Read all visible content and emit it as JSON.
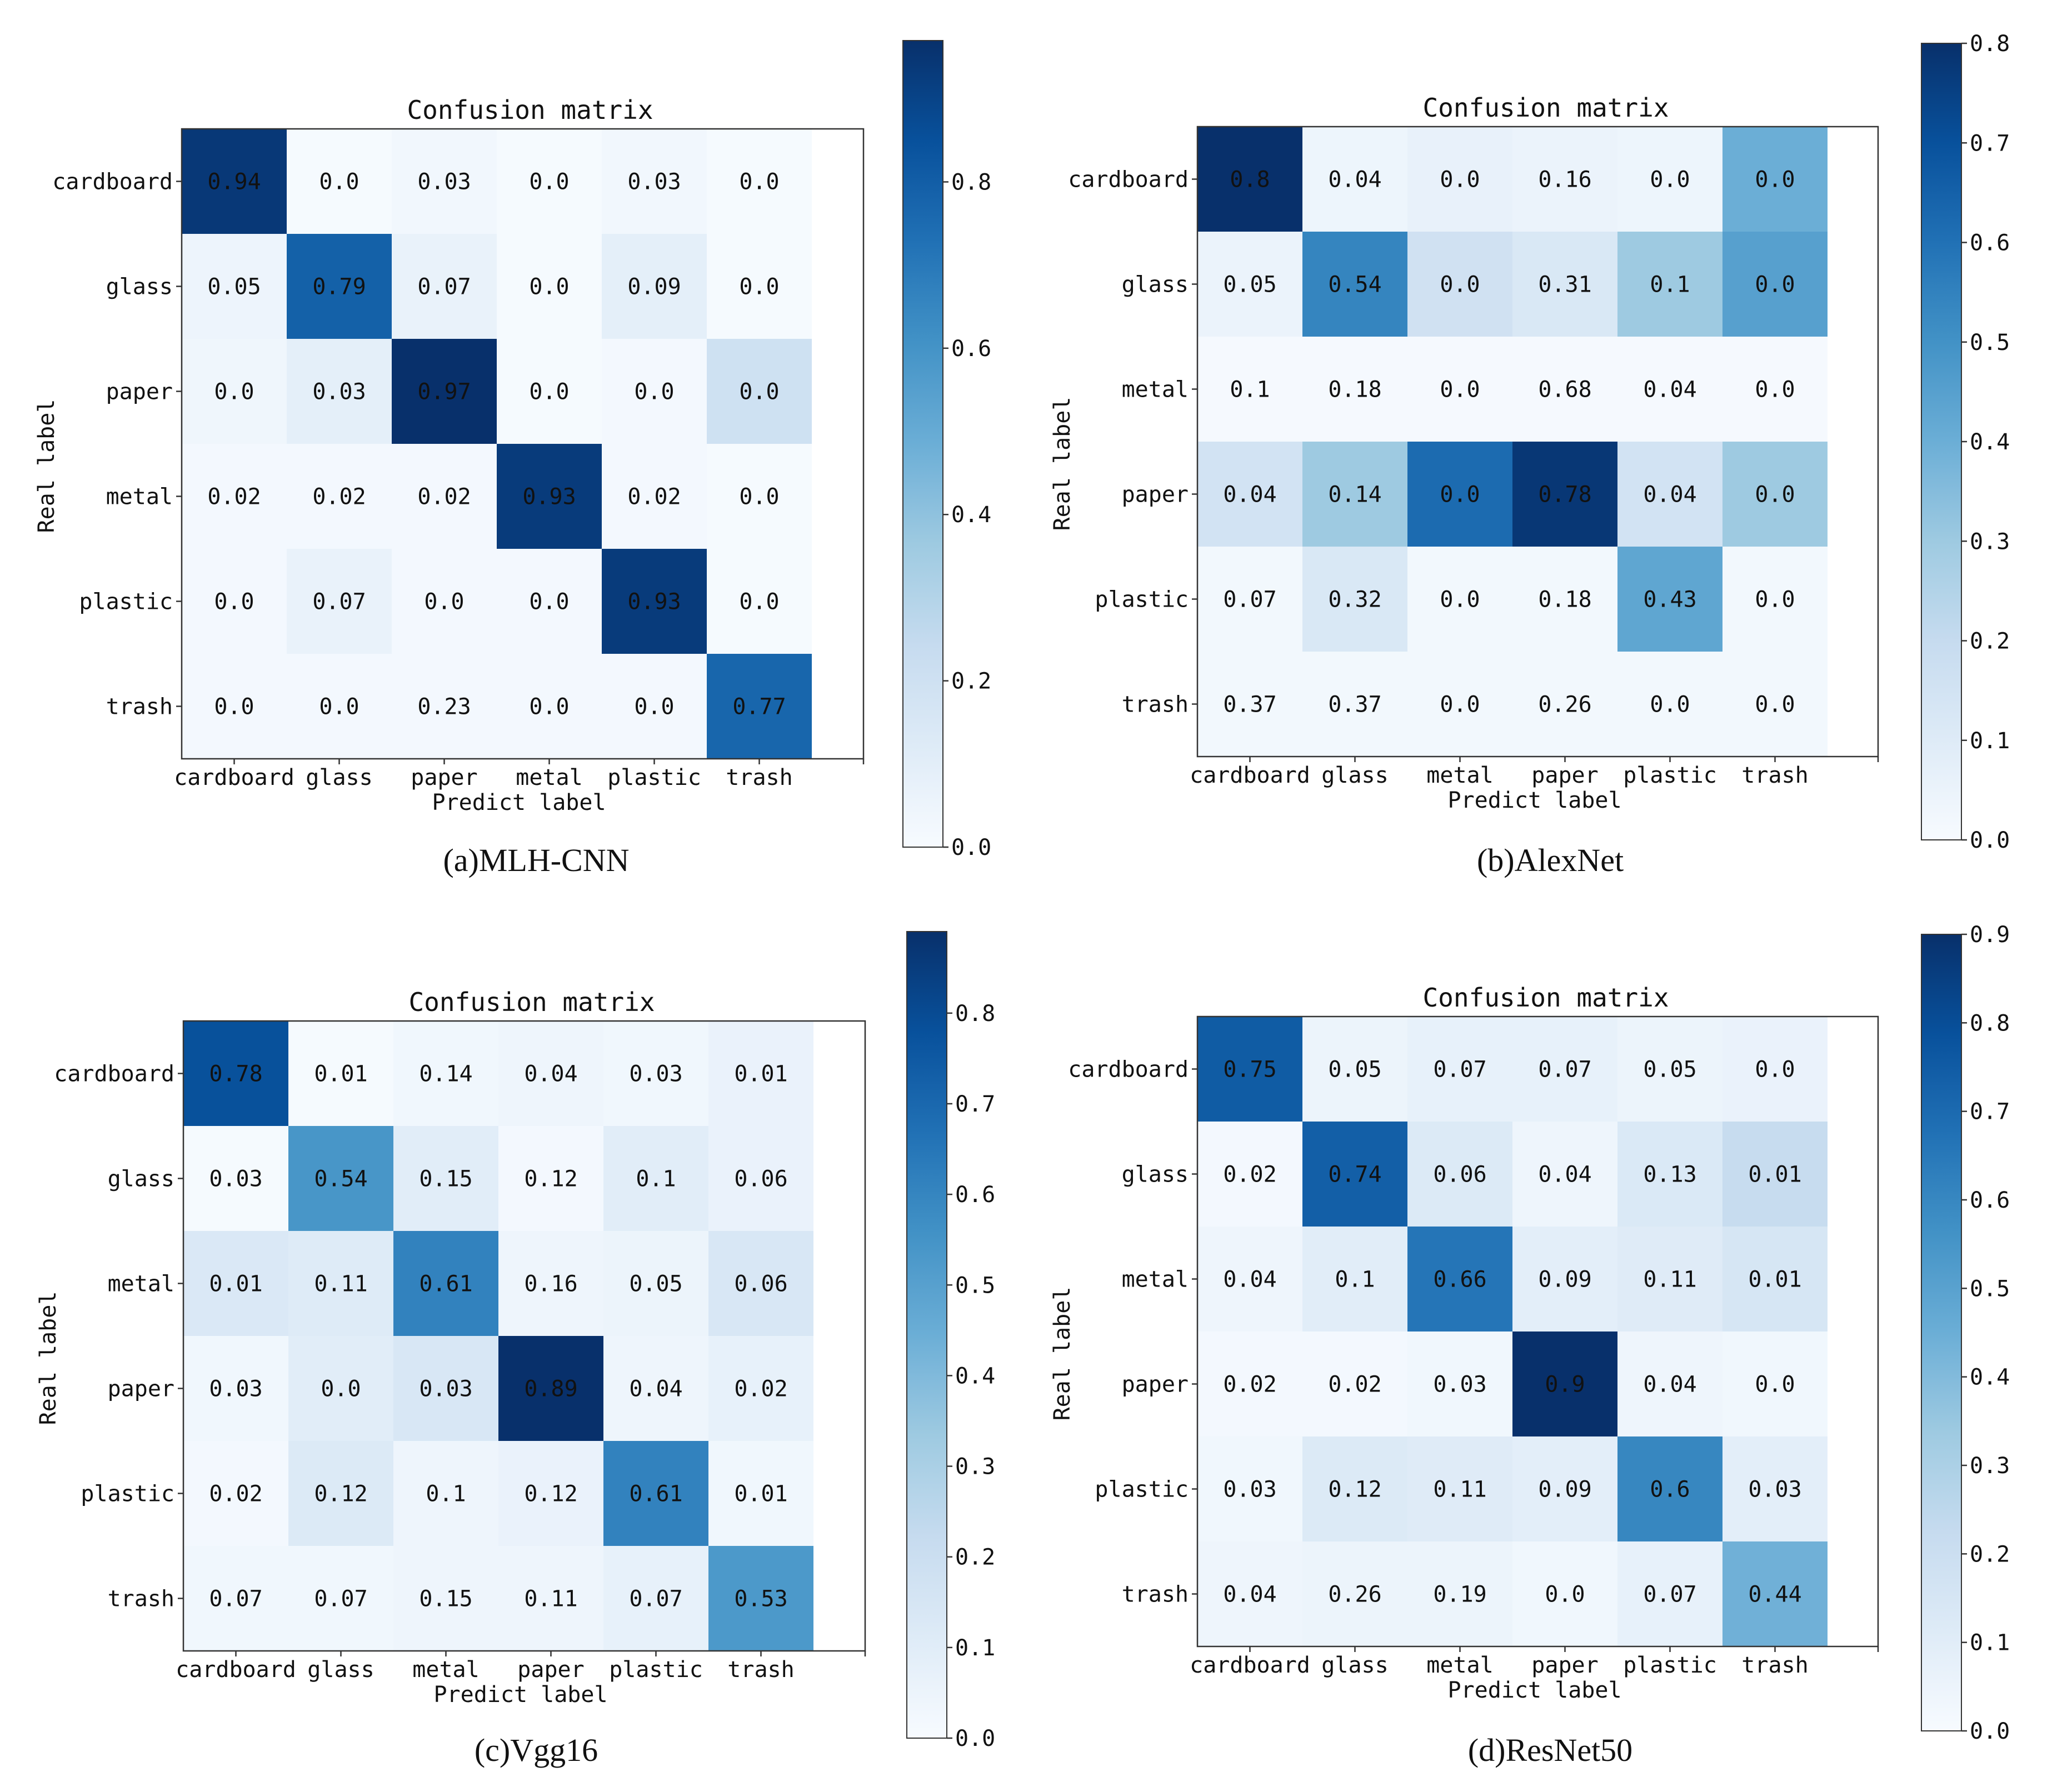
{
  "chart_data": [
    {
      "type": "heatmap",
      "title": "Confusion matrix",
      "caption": "(a)MLH-CNN",
      "xlabel": "Predict label",
      "ylabel": "Real label",
      "x_categories": [
        "cardboard",
        "glass",
        "paper",
        "metal",
        "plastic",
        "trash"
      ],
      "y_categories": [
        "cardboard",
        "glass",
        "paper",
        "metal",
        "plastic",
        "trash"
      ],
      "cells": [
        [
          "0.94",
          "0.0",
          "0.03",
          "0.0",
          "0.03",
          "0.0"
        ],
        [
          "0.05",
          "0.79",
          "0.07",
          "0.0",
          "0.09",
          "0.0"
        ],
        [
          "0.0",
          "0.03",
          "0.97",
          "0.0",
          "0.0",
          "0.0"
        ],
        [
          "0.02",
          "0.02",
          "0.02",
          "0.93",
          "0.02",
          "0.0"
        ],
        [
          "0.0",
          "0.07",
          "0.0",
          "0.0",
          "0.93",
          "0.0"
        ],
        [
          "0.0",
          "0.0",
          "0.23",
          "0.0",
          "0.0",
          "0.77"
        ]
      ],
      "shade": [
        [
          0.94,
          0.01,
          0.03,
          0.01,
          0.03,
          0.01
        ],
        [
          0.05,
          0.79,
          0.07,
          0.01,
          0.09,
          0.01
        ],
        [
          0.04,
          0.09,
          0.97,
          0.01,
          0.02,
          0.2
        ],
        [
          0.02,
          0.02,
          0.02,
          0.93,
          0.02,
          0.01
        ],
        [
          0.02,
          0.07,
          0.02,
          0.02,
          0.93,
          0.01
        ],
        [
          0.02,
          0.02,
          0.02,
          0.02,
          0.02,
          0.77
        ]
      ],
      "colorbar": {
        "min": 0.0,
        "max": 0.97,
        "ticks": [
          "0.0",
          "0.2",
          "0.4",
          "0.6",
          "0.8"
        ]
      }
    },
    {
      "type": "heatmap",
      "title": "Confusion matrix",
      "caption": "(b)AlexNet",
      "xlabel": "Predict label",
      "ylabel": "Real label",
      "x_categories": [
        "cardboard",
        "glass",
        "metal",
        "paper",
        "plastic",
        "trash"
      ],
      "y_categories": [
        "cardboard",
        "glass",
        "metal",
        "paper",
        "plastic",
        "trash"
      ],
      "cells": [
        [
          "0.8",
          "0.04",
          "0.0",
          "0.16",
          "0.0",
          "0.0"
        ],
        [
          "0.05",
          "0.54",
          "0.0",
          "0.31",
          "0.1",
          "0.0"
        ],
        [
          "0.1",
          "0.18",
          "0.0",
          "0.68",
          "0.04",
          "0.0"
        ],
        [
          "0.04",
          "0.14",
          "0.0",
          "0.78",
          "0.04",
          "0.0"
        ],
        [
          "0.07",
          "0.32",
          "0.0",
          "0.18",
          "0.43",
          "0.0"
        ],
        [
          "0.37",
          "0.37",
          "0.0",
          "0.26",
          "0.0",
          "0.0"
        ]
      ],
      "shade": [
        [
          0.8,
          0.04,
          0.06,
          0.05,
          0.04,
          0.4
        ],
        [
          0.05,
          0.54,
          0.16,
          0.12,
          0.3,
          0.45
        ],
        [
          0.01,
          0.01,
          0.01,
          0.01,
          0.01,
          0.01
        ],
        [
          0.15,
          0.3,
          0.62,
          0.78,
          0.15,
          0.3
        ],
        [
          0.02,
          0.12,
          0.02,
          0.02,
          0.43,
          0.02
        ],
        [
          0.02,
          0.02,
          0.02,
          0.02,
          0.02,
          0.02
        ]
      ],
      "colorbar": {
        "min": 0.0,
        "max": 0.8,
        "ticks": [
          "0.0",
          "0.1",
          "0.2",
          "0.3",
          "0.4",
          "0.5",
          "0.6",
          "0.7",
          "0.8"
        ]
      }
    },
    {
      "type": "heatmap",
      "title": "Confusion matrix",
      "caption": "(c)Vgg16",
      "xlabel": "Predict label",
      "ylabel": "Real label",
      "x_categories": [
        "cardboard",
        "glass",
        "metal",
        "paper",
        "plastic",
        "trash"
      ],
      "y_categories": [
        "cardboard",
        "glass",
        "metal",
        "paper",
        "plastic",
        "trash"
      ],
      "cells": [
        [
          "0.78",
          "0.01",
          "0.14",
          "0.04",
          "0.03",
          "0.01"
        ],
        [
          "0.03",
          "0.54",
          "0.15",
          "0.12",
          "0.1",
          "0.06"
        ],
        [
          "0.01",
          "0.11",
          "0.61",
          "0.16",
          "0.05",
          "0.06"
        ],
        [
          "0.03",
          "0.0",
          "0.03",
          "0.89",
          "0.04",
          "0.02"
        ],
        [
          "0.02",
          "0.12",
          "0.1",
          "0.12",
          "0.61",
          "0.01"
        ],
        [
          "0.07",
          "0.07",
          "0.15",
          "0.11",
          "0.07",
          "0.53"
        ]
      ],
      "shade": [
        [
          0.78,
          0.01,
          0.03,
          0.04,
          0.03,
          0.06
        ],
        [
          0.01,
          0.54,
          0.1,
          0.02,
          0.1,
          0.06
        ],
        [
          0.13,
          0.11,
          0.61,
          0.04,
          0.05,
          0.14
        ],
        [
          0.03,
          0.1,
          0.14,
          0.89,
          0.04,
          0.07
        ],
        [
          0.02,
          0.12,
          0.04,
          0.06,
          0.61,
          0.03
        ],
        [
          0.03,
          0.03,
          0.04,
          0.04,
          0.07,
          0.53
        ]
      ],
      "colorbar": {
        "min": 0.0,
        "max": 0.89,
        "ticks": [
          "0.0",
          "0.1",
          "0.2",
          "0.3",
          "0.4",
          "0.5",
          "0.6",
          "0.7",
          "0.8"
        ]
      }
    },
    {
      "type": "heatmap",
      "title": "Confusion matrix",
      "caption": "(d)ResNet50",
      "xlabel": "Predict label",
      "ylabel": "Real label",
      "x_categories": [
        "cardboard",
        "glass",
        "metal",
        "paper",
        "plastic",
        "trash"
      ],
      "y_categories": [
        "cardboard",
        "glass",
        "metal",
        "paper",
        "plastic",
        "trash"
      ],
      "cells": [
        [
          "0.75",
          "0.05",
          "0.07",
          "0.07",
          "0.05",
          "0.0"
        ],
        [
          "0.02",
          "0.74",
          "0.06",
          "0.04",
          "0.13",
          "0.01"
        ],
        [
          "0.04",
          "0.1",
          "0.66",
          "0.09",
          "0.11",
          "0.01"
        ],
        [
          "0.02",
          "0.02",
          "0.03",
          "0.9",
          "0.04",
          "0.0"
        ],
        [
          "0.03",
          "0.12",
          "0.11",
          "0.09",
          "0.6",
          "0.03"
        ],
        [
          "0.04",
          "0.26",
          "0.19",
          "0.0",
          "0.07",
          "0.44"
        ]
      ],
      "shade": [
        [
          0.75,
          0.05,
          0.07,
          0.07,
          0.05,
          0.06
        ],
        [
          0.02,
          0.74,
          0.12,
          0.04,
          0.13,
          0.22
        ],
        [
          0.04,
          0.1,
          0.66,
          0.09,
          0.11,
          0.15
        ],
        [
          0.02,
          0.02,
          0.03,
          0.9,
          0.04,
          0.03
        ],
        [
          0.03,
          0.12,
          0.11,
          0.09,
          0.6,
          0.09
        ],
        [
          0.04,
          0.05,
          0.05,
          0.03,
          0.07,
          0.44
        ]
      ],
      "colorbar": {
        "min": 0.0,
        "max": 0.9,
        "ticks": [
          "0.0",
          "0.1",
          "0.2",
          "0.3",
          "0.4",
          "0.5",
          "0.6",
          "0.7",
          "0.8",
          "0.9"
        ]
      }
    }
  ],
  "colors": {
    "light": "#f7fbff",
    "ramp": [
      "#f7fbff",
      "#deebf7",
      "#c6dbef",
      "#9ecae1",
      "#6baed6",
      "#4292c6",
      "#2171b5",
      "#08519c",
      "#08306b"
    ],
    "text": "#111111",
    "axis": "#333333"
  }
}
